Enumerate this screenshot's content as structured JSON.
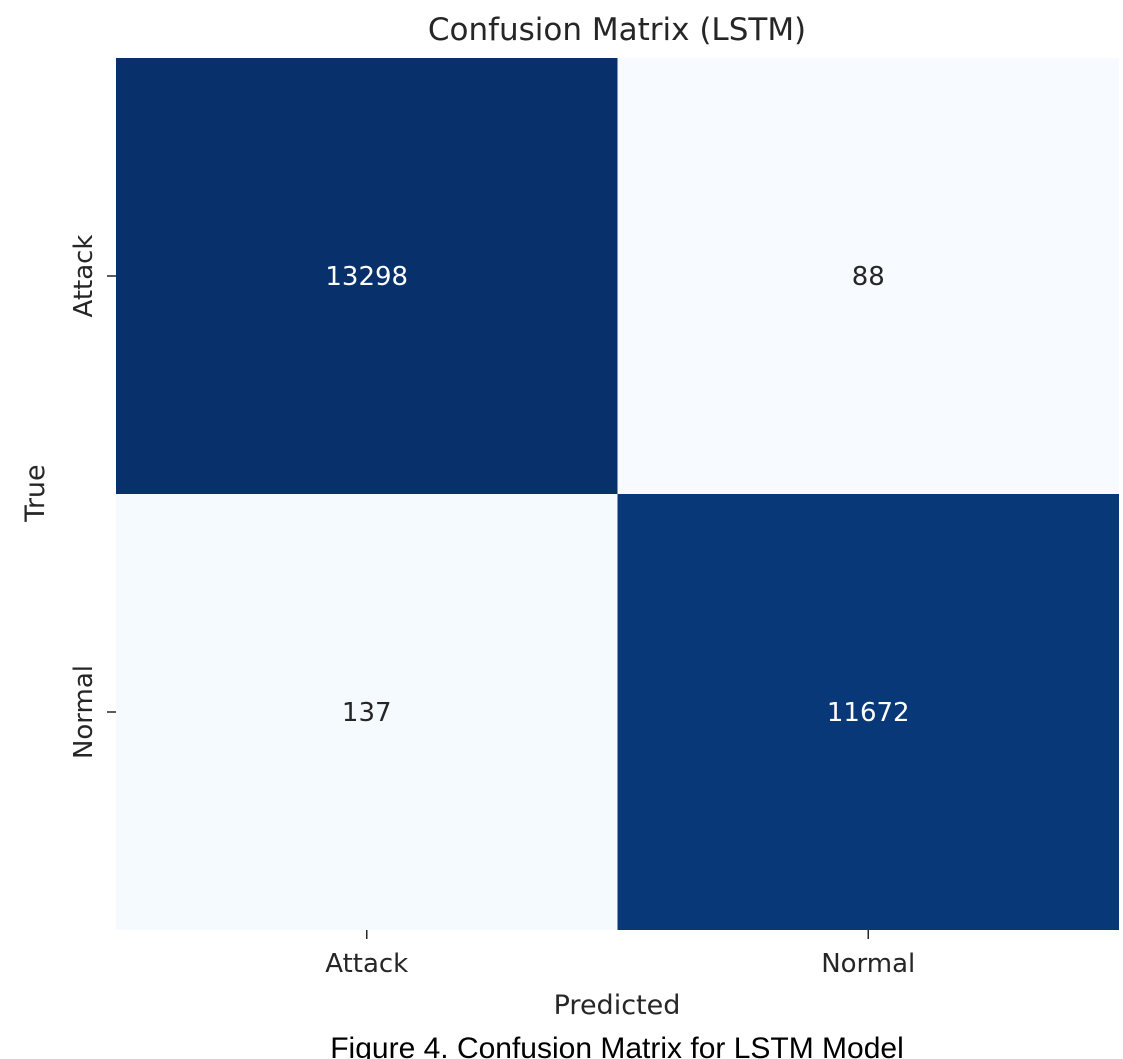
{
  "chart_data": {
    "type": "heatmap",
    "title": "Confusion Matrix (LSTM)",
    "xlabel": "Predicted",
    "ylabel": "True",
    "x_categories": [
      "Attack",
      "Normal"
    ],
    "y_categories": [
      "Attack",
      "Normal"
    ],
    "values": [
      [
        13298,
        88
      ],
      [
        137,
        11672
      ]
    ],
    "colormap": "Blues",
    "colorbar": false,
    "annotated": true,
    "colors": {
      "max_cell": "#08306b",
      "high_cell": "#08519c",
      "low_cell": "#f7fbff",
      "annotation_dark_bg": "#ffffff",
      "annotation_light_bg": "#262626"
    }
  },
  "caption": "Figure 4. Confusion Matrix for LSTM Model"
}
